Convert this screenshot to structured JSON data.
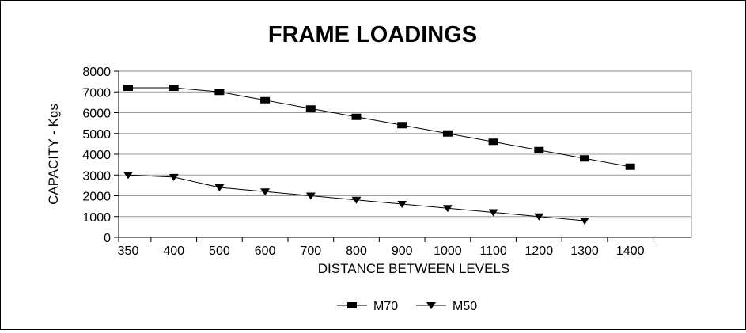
{
  "chart_data": {
    "type": "line",
    "title": "FRAME LOADINGS",
    "xlabel": "DISTANCE BETWEEN LEVELS",
    "ylabel": "CAPACITY - Kgs",
    "categories": [
      "350",
      "400",
      "500",
      "600",
      "700",
      "800",
      "900",
      "1000",
      "1100",
      "1200",
      "1300",
      "1400"
    ],
    "ylim": [
      0,
      8000
    ],
    "yticks": [
      0,
      1000,
      2000,
      3000,
      4000,
      5000,
      6000,
      7000,
      8000
    ],
    "grid": true,
    "legend_position": "bottom",
    "series": [
      {
        "name": "M70",
        "marker": "square",
        "values": [
          7200,
          7200,
          7000,
          6600,
          6200,
          5800,
          5400,
          5000,
          4600,
          4200,
          3800,
          3400
        ]
      },
      {
        "name": "M50",
        "marker": "triangle-down",
        "values": [
          3000,
          2900,
          2400,
          2200,
          2000,
          1800,
          1600,
          1400,
          1200,
          1000,
          800,
          null
        ]
      }
    ]
  }
}
